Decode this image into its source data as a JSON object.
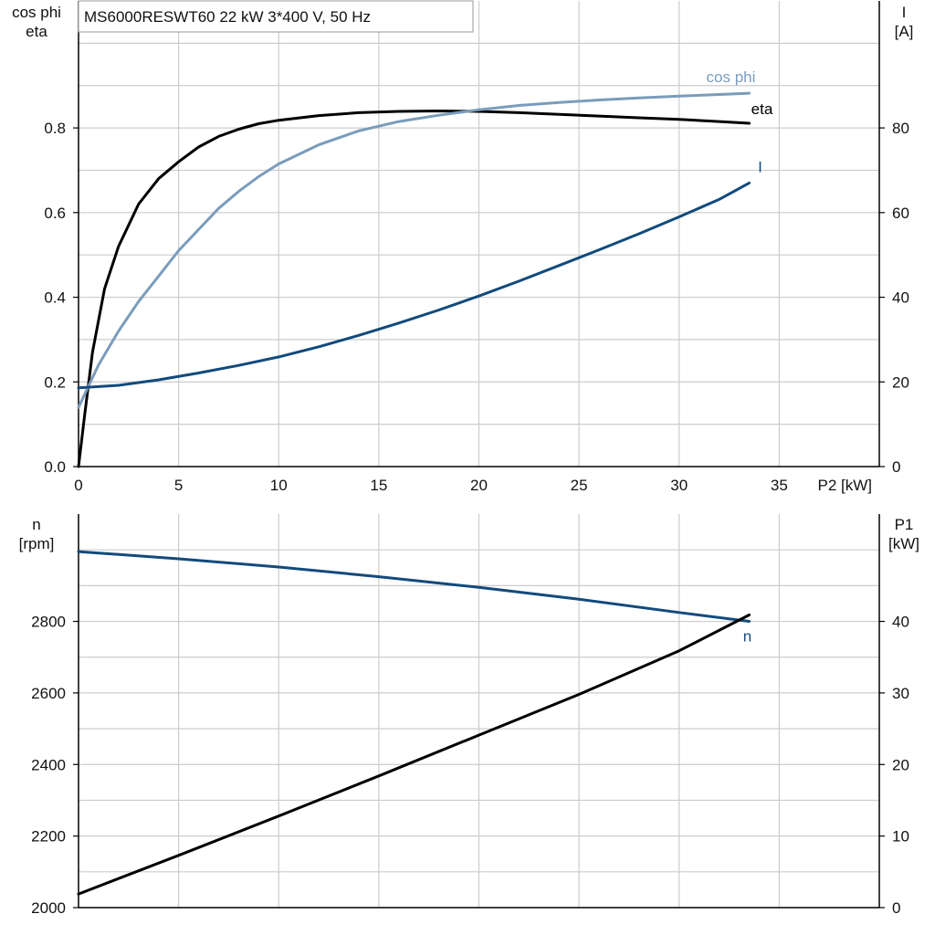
{
  "title": "MS6000RESWT60   22 kW   3*400 V, 50 Hz",
  "colors": {
    "eta": "#000000",
    "cos_phi": "#7a9cbc",
    "current": "#124a7c",
    "speed": "#124a7c",
    "p1": "#000000",
    "grid": "#cccccc",
    "axis": "#000000"
  },
  "chart_data": [
    {
      "type": "line",
      "grid": true,
      "xlabel": "P2 [kW]",
      "xlim": [
        0,
        40
      ],
      "xticks": [
        "0",
        "5",
        "10",
        "15",
        "20",
        "25",
        "30",
        "35"
      ],
      "ylabel_left": [
        "cos phi",
        "eta"
      ],
      "ylim_left": [
        0,
        1.1
      ],
      "yticks_left": [
        "0.0",
        "0.2",
        "0.4",
        "0.6",
        "0.8"
      ],
      "ylabel_right": [
        "I",
        "[A]"
      ],
      "ylim_right": [
        0,
        110
      ],
      "yticks_right": [
        "0",
        "20",
        "40",
        "60",
        "80"
      ],
      "series": [
        {
          "name": "eta",
          "axis": "left",
          "x": [
            0,
            0.3,
            0.7,
            1.3,
            2,
            3,
            4,
            5,
            6,
            7,
            8,
            9,
            10,
            12,
            14,
            16,
            18,
            20,
            22,
            24,
            26,
            28,
            30,
            32,
            33.5
          ],
          "values": [
            0,
            0.12,
            0.27,
            0.42,
            0.52,
            0.62,
            0.68,
            0.72,
            0.755,
            0.78,
            0.797,
            0.81,
            0.818,
            0.829,
            0.836,
            0.839,
            0.84,
            0.839,
            0.836,
            0.832,
            0.828,
            0.824,
            0.82,
            0.815,
            0.811
          ]
        },
        {
          "name": "cos phi",
          "axis": "left",
          "x": [
            0,
            1,
            2,
            3,
            4,
            5,
            6,
            7,
            8,
            9,
            10,
            12,
            14,
            16,
            18,
            20,
            22,
            24,
            26,
            28,
            30,
            32,
            33.5
          ],
          "values": [
            0.14,
            0.24,
            0.32,
            0.39,
            0.45,
            0.51,
            0.56,
            0.61,
            0.65,
            0.685,
            0.715,
            0.76,
            0.793,
            0.815,
            0.83,
            0.843,
            0.853,
            0.86,
            0.866,
            0.871,
            0.875,
            0.879,
            0.882
          ]
        },
        {
          "name": "I",
          "axis": "right",
          "x": [
            0,
            2,
            4,
            6,
            8,
            10,
            12,
            14,
            16,
            18,
            20,
            22,
            24,
            26,
            28,
            30,
            32,
            33.5
          ],
          "values": [
            18.6,
            19.2,
            20.5,
            22.1,
            23.9,
            25.9,
            28.3,
            31,
            33.9,
            37,
            40.3,
            43.8,
            47.5,
            51.2,
            55,
            59,
            63.1,
            67
          ]
        }
      ]
    },
    {
      "type": "line",
      "grid": true,
      "xlim": [
        0,
        40
      ],
      "ylabel_left": [
        "n",
        "[rpm]"
      ],
      "ylim_left": [
        2000,
        3100
      ],
      "yticks_left": [
        "2000",
        "2200",
        "2400",
        "2600",
        "2800"
      ],
      "ylabel_right": [
        "P1",
        "[kW]"
      ],
      "ylim_right": [
        0,
        55
      ],
      "yticks_right": [
        "0",
        "10",
        "20",
        "30",
        "40"
      ],
      "series": [
        {
          "name": "n",
          "axis": "left",
          "x": [
            0,
            5,
            10,
            15,
            20,
            25,
            30,
            33.5
          ],
          "values": [
            2995,
            2975,
            2952,
            2925,
            2895,
            2862,
            2825,
            2800
          ]
        },
        {
          "name": "",
          "axis": "right",
          "x": [
            0,
            5,
            10,
            15,
            20,
            25,
            30,
            33.5
          ],
          "values": [
            1.9,
            7.3,
            12.8,
            18.4,
            24.1,
            29.8,
            35.9,
            40.9
          ]
        }
      ]
    }
  ]
}
